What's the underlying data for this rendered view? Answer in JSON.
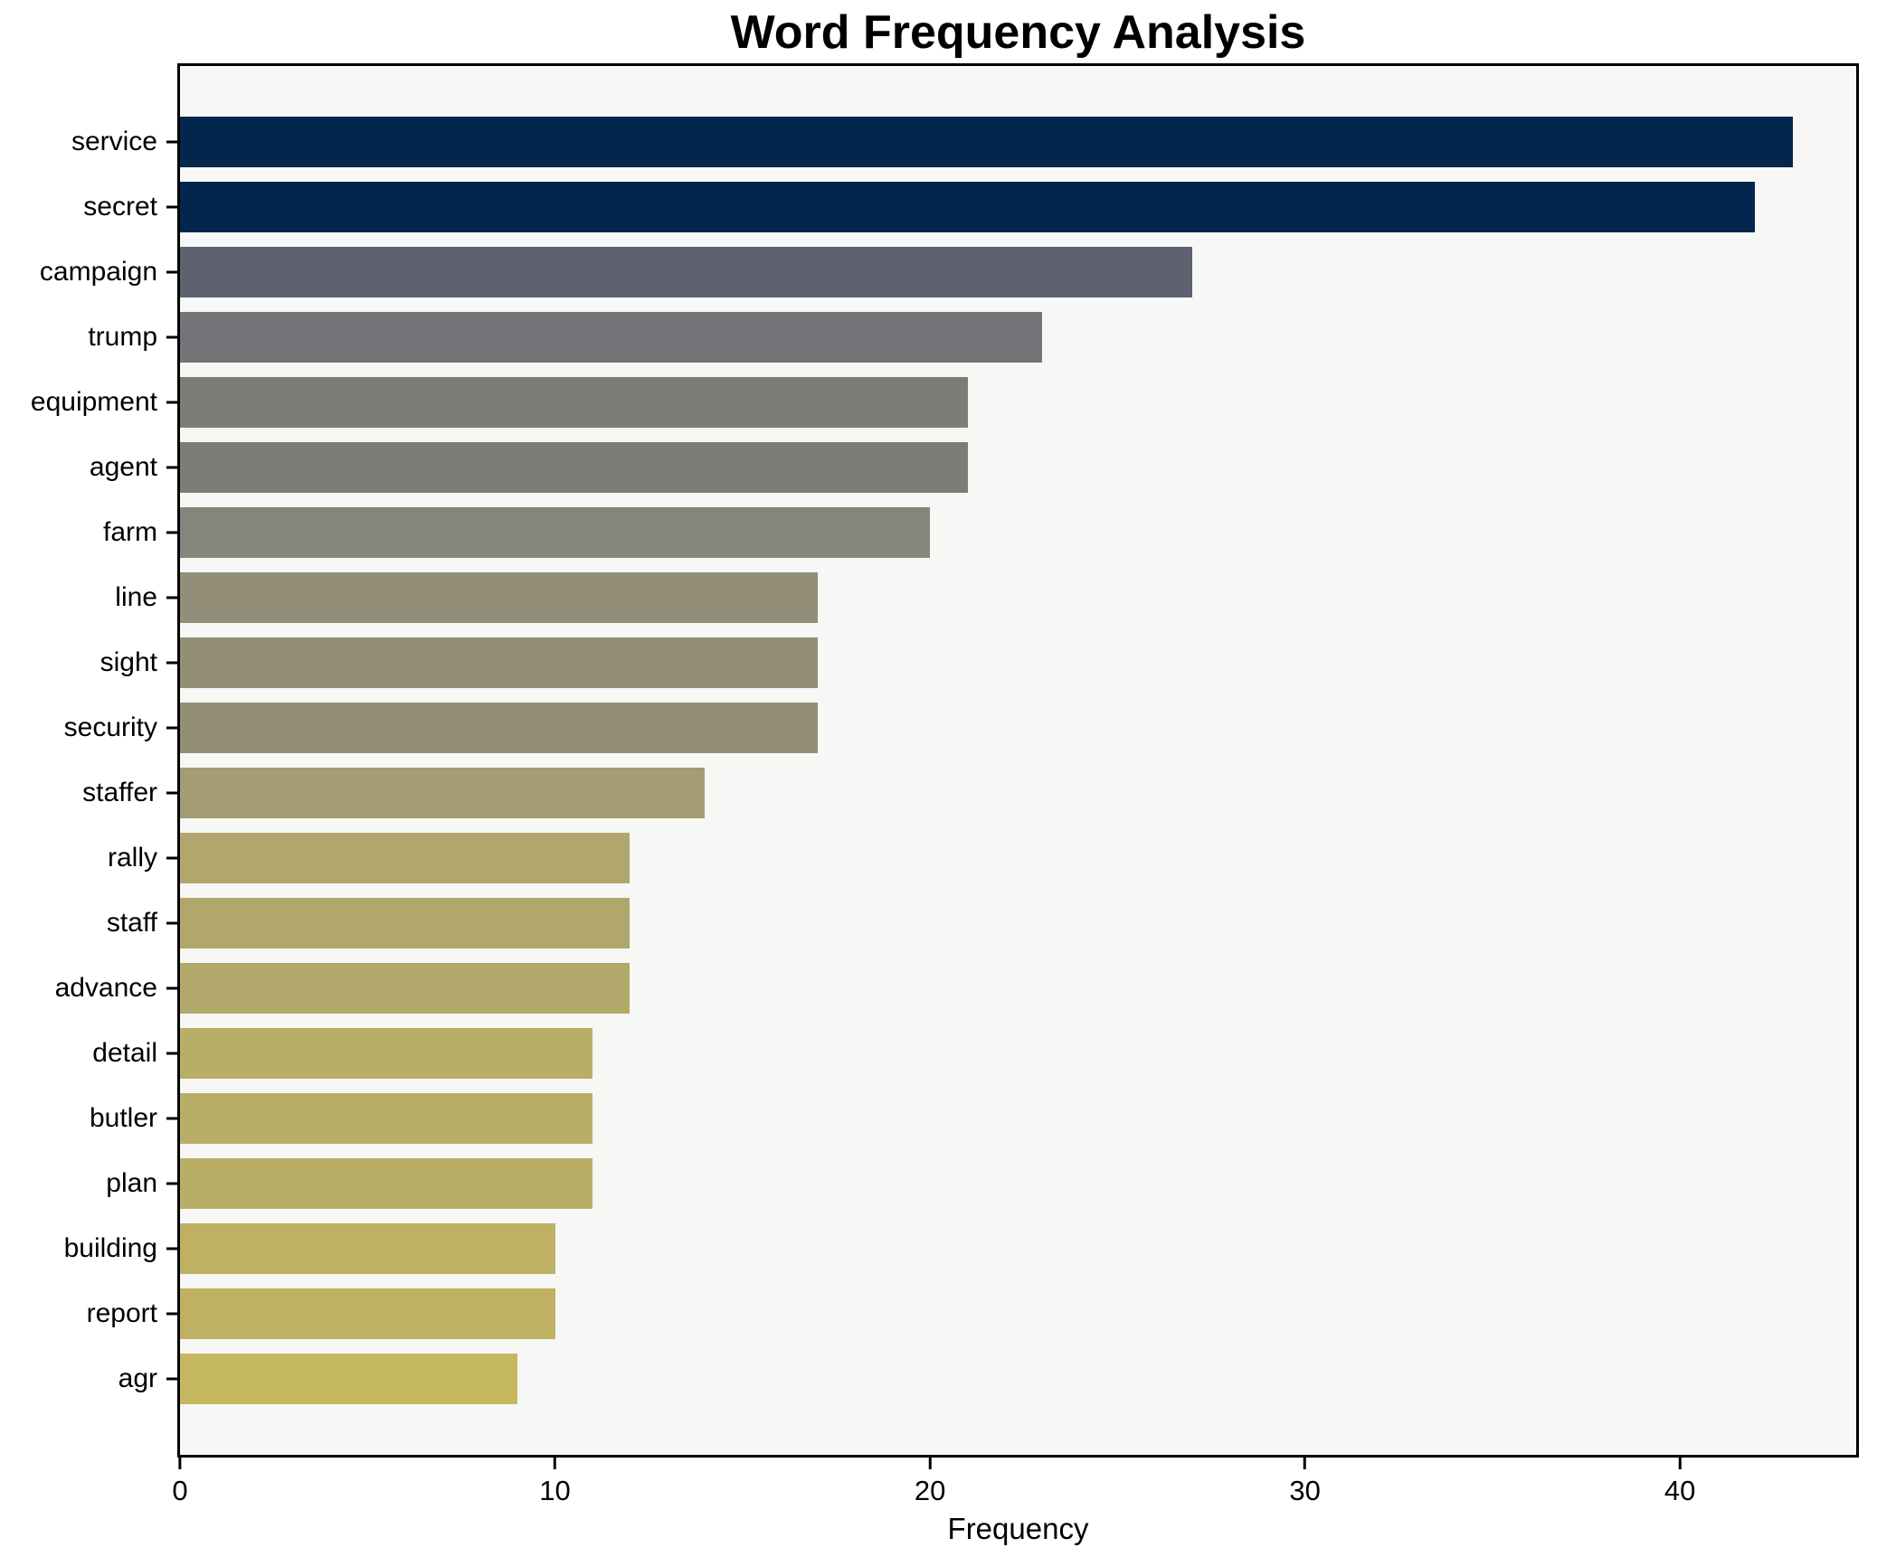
{
  "chart_data": {
    "type": "bar",
    "orientation": "horizontal",
    "title": "Word Frequency Analysis",
    "xlabel": "Frequency",
    "ylabel": "",
    "categories": [
      "service",
      "secret",
      "campaign",
      "trump",
      "equipment",
      "agent",
      "farm",
      "line",
      "sight",
      "security",
      "staffer",
      "rally",
      "staff",
      "advance",
      "detail",
      "butler",
      "plan",
      "building",
      "report",
      "agr"
    ],
    "values": [
      43,
      42,
      27,
      23,
      21,
      21,
      20,
      17,
      17,
      17,
      14,
      12,
      12,
      12,
      11,
      11,
      11,
      10,
      10,
      9
    ],
    "bar_colors": [
      "#02264e",
      "#02264e",
      "#5e6270",
      "#747579",
      "#7c7d76",
      "#7c7d76",
      "#85857b",
      "#928e77",
      "#938f77",
      "#938f77",
      "#a49c72",
      "#b1a76c",
      "#b1a76c",
      "#b2a86b",
      "#b9ae68",
      "#b9ae68",
      "#b9ae68",
      "#bfb163",
      "#bfb163",
      "#c6b85f"
    ],
    "x_ticks": [
      0,
      10,
      20,
      30,
      40
    ],
    "xlim": [
      0,
      44.7
    ],
    "grid": false,
    "legend": "none",
    "plot_bg": "#f7f7f5",
    "figure_bg": "#ffffff",
    "spine_color": "#000000",
    "text_color": "#000000"
  }
}
